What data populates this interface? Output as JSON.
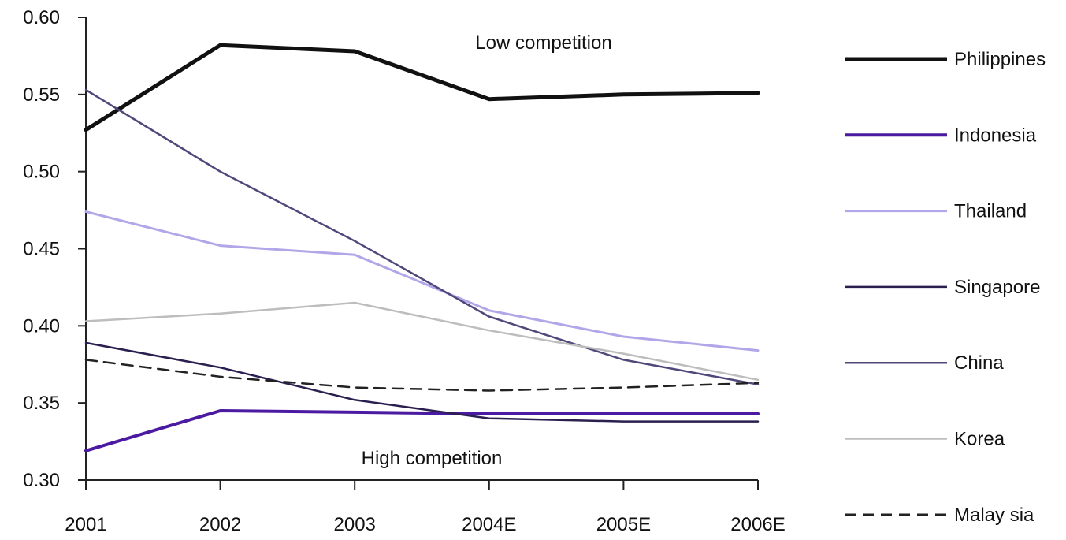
{
  "chart_data": {
    "type": "line",
    "categories": [
      "2001",
      "2002",
      "2003",
      "2004E",
      "2005E",
      "2006E"
    ],
    "ylim": [
      0.3,
      0.6
    ],
    "yticks": [
      "0.30",
      "0.35",
      "0.40",
      "0.45",
      "0.50",
      "0.55",
      "0.60"
    ],
    "ytick_values": [
      0.3,
      0.35,
      0.4,
      0.45,
      0.5,
      0.55,
      0.6
    ],
    "grid": false,
    "legend_position": "right",
    "annotations": {
      "top": "Low competition",
      "bottom": "High competition"
    },
    "series": [
      {
        "name": "Philippines",
        "values": [
          0.527,
          0.582,
          0.578,
          0.547,
          0.55,
          0.551
        ],
        "color": "#111111",
        "width": 5,
        "dash": ""
      },
      {
        "name": "Indonesia",
        "values": [
          0.319,
          0.345,
          0.344,
          0.343,
          0.343,
          0.343
        ],
        "color": "#4a1aa0",
        "width": 4,
        "dash": ""
      },
      {
        "name": "Thailand",
        "values": [
          0.474,
          0.452,
          0.446,
          0.41,
          0.393,
          0.384
        ],
        "color": "#b3a6e8",
        "width": 3,
        "dash": ""
      },
      {
        "name": "Singapore",
        "values": [
          0.389,
          0.373,
          0.352,
          0.34,
          0.338,
          0.338
        ],
        "color": "#2a1f4f",
        "width": 2.5,
        "dash": ""
      },
      {
        "name": "China",
        "values": [
          0.553,
          0.5,
          0.455,
          0.406,
          0.378,
          0.362
        ],
        "color": "#50487a",
        "width": 2.5,
        "dash": ""
      },
      {
        "name": "Korea",
        "values": [
          0.403,
          0.408,
          0.415,
          0.397,
          0.382,
          0.365
        ],
        "color": "#bdbdbd",
        "width": 2.5,
        "dash": ""
      },
      {
        "name": "Malay sia",
        "values": [
          0.378,
          0.367,
          0.36,
          0.358,
          0.36,
          0.363
        ],
        "color": "#222222",
        "width": 2.5,
        "dash": "14,9"
      }
    ]
  }
}
